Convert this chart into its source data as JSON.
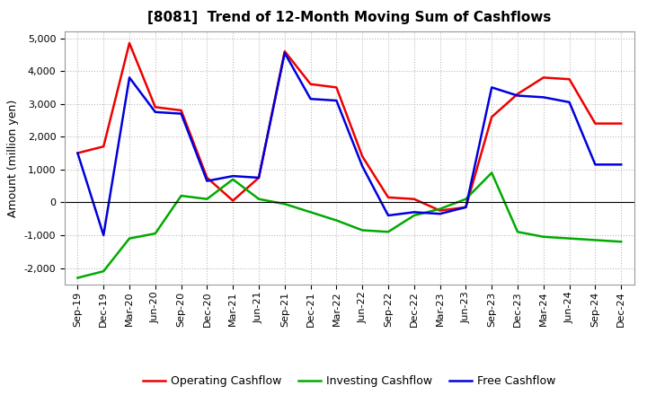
{
  "title": "[8081]  Trend of 12-Month Moving Sum of Cashflows",
  "ylabel": "Amount (million yen)",
  "x_labels": [
    "Sep-19",
    "Dec-19",
    "Mar-20",
    "Jun-20",
    "Sep-20",
    "Dec-20",
    "Mar-21",
    "Jun-21",
    "Sep-21",
    "Dec-21",
    "Mar-22",
    "Jun-22",
    "Sep-22",
    "Dec-22",
    "Mar-23",
    "Jun-23",
    "Sep-23",
    "Dec-23",
    "Mar-24",
    "Jun-24",
    "Sep-24",
    "Dec-24"
  ],
  "operating": [
    1500,
    1700,
    4850,
    2900,
    2800,
    750,
    50,
    750,
    4600,
    3600,
    3500,
    1400,
    150,
    100,
    -250,
    -150,
    2600,
    3300,
    3800,
    3750,
    2400,
    2400
  ],
  "investing": [
    -2300,
    -2100,
    -1100,
    -950,
    200,
    100,
    700,
    100,
    -50,
    -300,
    -550,
    -850,
    -900,
    -400,
    -200,
    100,
    900,
    -900,
    -1050,
    -1100,
    -1150,
    -1200
  ],
  "free": [
    1500,
    -1000,
    3800,
    2750,
    2700,
    650,
    800,
    750,
    4550,
    3150,
    3100,
    1100,
    -400,
    -300,
    -350,
    -150,
    3500,
    3250,
    3200,
    3050,
    1150,
    1150
  ],
  "ylim": [
    -2500,
    5200
  ],
  "yticks": [
    -2000,
    -1000,
    0,
    1000,
    2000,
    3000,
    4000,
    5000
  ],
  "operating_color": "#ee0000",
  "investing_color": "#00aa00",
  "free_color": "#0000dd",
  "bg_color": "#ffffff",
  "plot_bg_color": "#ffffff",
  "grid_color": "#bbbbbb",
  "linewidth": 1.8,
  "title_fontsize": 11,
  "axis_fontsize": 8,
  "ylabel_fontsize": 9,
  "legend_fontsize": 9
}
